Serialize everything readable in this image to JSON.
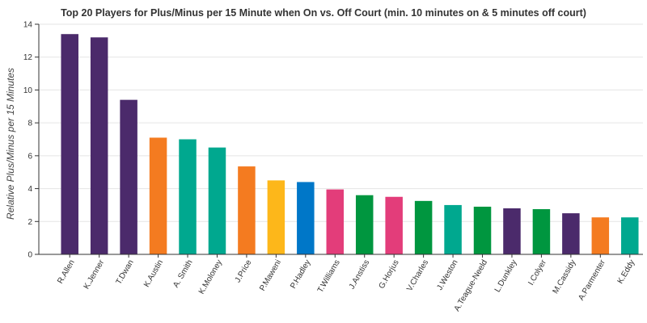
{
  "chart_data": {
    "type": "bar",
    "title": "Top 20 Players for Plus/Minus per 15 Minute when On vs. Off Court (min. 10 minutes on & 5 minutes off court)",
    "xlabel": "",
    "ylabel": "Relative Plus/Minus per 15 Minutes",
    "ylim": [
      0,
      14
    ],
    "yticks": [
      0,
      2,
      4,
      6,
      8,
      10,
      12,
      14
    ],
    "grid": "horizontal",
    "categories": [
      "R.Allen",
      "K.Jenner",
      "T.Dwan",
      "K.Austin",
      "A. Smith",
      "K.Moloney",
      "J.Price",
      "P.Maweni",
      "P.Hadley",
      "T.Williams",
      "J.Anstiss",
      "G.Horjus",
      "V.Charles",
      "J.Weston",
      "A.Teague-Neeld",
      "L.Dunkley",
      "I.Colyer",
      "M.Cassidy",
      "A.Parmenter",
      "K.Eddy"
    ],
    "values": [
      13.4,
      13.2,
      9.4,
      7.1,
      7.0,
      6.5,
      5.35,
      4.5,
      4.4,
      3.95,
      3.6,
      3.5,
      3.25,
      3.0,
      2.9,
      2.8,
      2.75,
      2.5,
      2.25,
      2.25
    ],
    "colors": [
      "#4b2a6b",
      "#4b2a6b",
      "#4b2a6b",
      "#f47b20",
      "#00a88f",
      "#00a88f",
      "#f47b20",
      "#fdb71a",
      "#0077c8",
      "#e33d7a",
      "#00963f",
      "#e33d7a",
      "#00963f",
      "#00a88f",
      "#00963f",
      "#4b2a6b",
      "#00963f",
      "#4b2a6b",
      "#f47b20",
      "#00a88f"
    ]
  }
}
